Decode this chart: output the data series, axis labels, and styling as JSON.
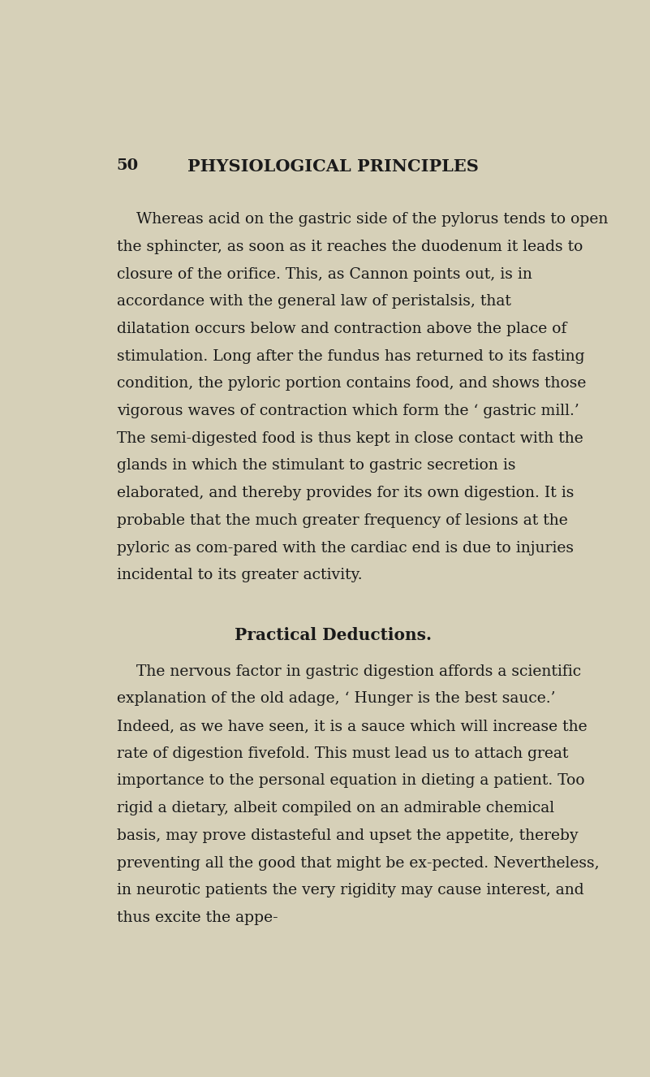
{
  "background_color": "#d6d0b8",
  "page_number": "50",
  "header": "PHYSIOLOGICAL PRINCIPLES",
  "paragraph1": "Whereas acid on the gastric side of the pylorus tends to open the sphincter, as soon as it reaches the duodenum it leads to closure of the orifice. This, as Cannon points out, is in accordance with the general law of peristalsis, that dilatation occurs below and contraction above the place of stimulation. Long after the fundus has returned to its fasting condition, the pyloric portion contains food, and shows those vigorous waves of contraction which form the ‘ gastric mill.’  The semi-digested food is thus kept in close contact with the glands in which the stimulant to gastric secretion is elaborated, and thereby provides for its own digestion.  It is probable that the much greater frequency of lesions at the pyloric as com­pared with the cardiac end is due to injuries incidental to its greater activity.",
  "section_heading": "Practical Deductions.",
  "paragraph2": "The nervous factor in gastric digestion affords a scientific explanation of the old adage, ‘ Hunger is the best sauce.’  Indeed, as we have seen, it is a sauce which will increase the rate of digestion fivefold. This must lead us to attach great importance to the personal equation in dieting a patient.  Too rigid a dietary, albeit compiled on an admirable chemical basis, may prove distasteful and upset the appetite, thereby preventing all the good that might be ex­pected.  Nevertheless, in neurotic patients the very rigidity may cause interest, and thus excite the appe-",
  "text_color": "#1a1a1a",
  "header_color": "#1a1a1a",
  "font_size_body": 13.5,
  "font_size_header": 15,
  "font_size_section": 14.5,
  "font_size_page_num": 14
}
